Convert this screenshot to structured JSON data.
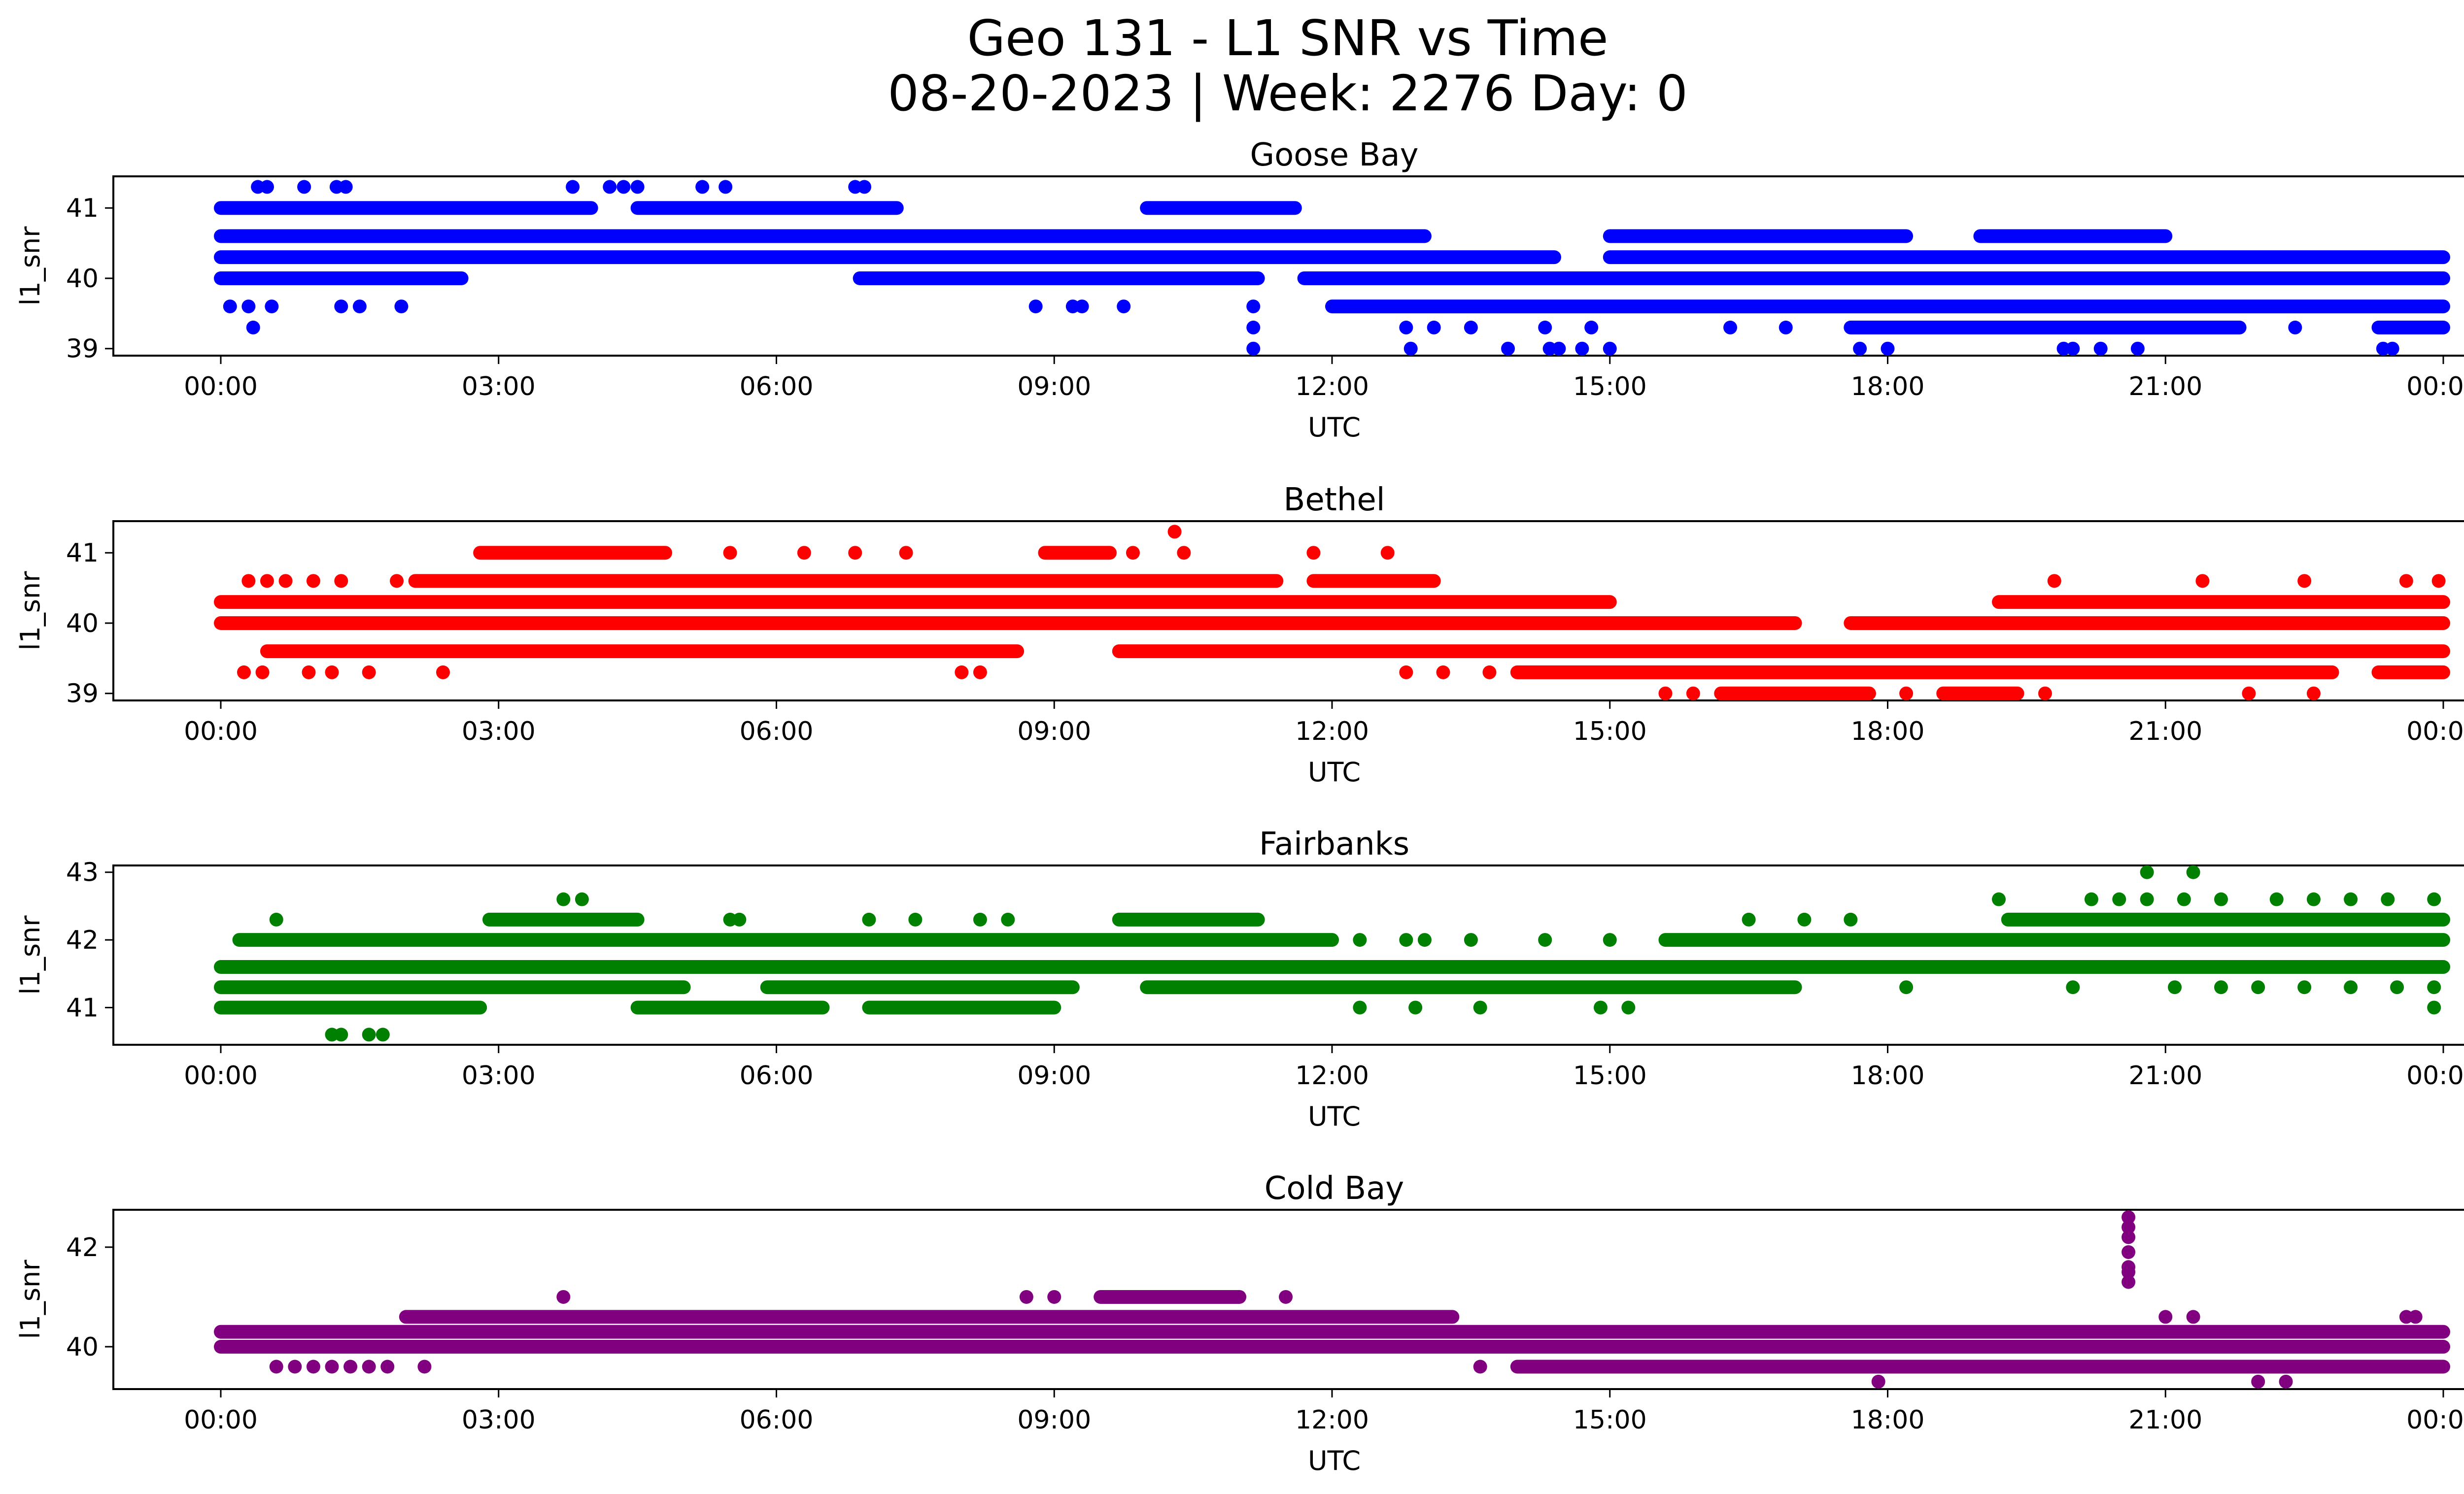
{
  "header": {
    "title_line1": "Geo 131 - L1 SNR vs Time",
    "title_line2": "08-20-2023 | Week: 2276 Day: 0"
  },
  "chart_data": [
    {
      "type": "scatter",
      "title": "Goose Bay",
      "xlabel": "UTC",
      "ylabel": "l1_snr",
      "x_unit": "hours (UTC)",
      "xlim": [
        0,
        24
      ],
      "ylim": [
        38.9,
        41.45
      ],
      "yticks": [
        39,
        40,
        41
      ],
      "xtick_labels": [
        "00:00",
        "03:00",
        "06:00",
        "09:00",
        "12:00",
        "15:00",
        "18:00",
        "21:00",
        "00:00"
      ],
      "color": "#0000ff",
      "series": [
        {
          "y": 41.0,
          "segments": [
            [
              0.0,
              4.0
            ],
            [
              4.5,
              7.3
            ],
            [
              10.0,
              11.6
            ]
          ]
        },
        {
          "y": 40.6,
          "segments": [
            [
              0.0,
              13.0
            ],
            [
              15.0,
              18.2
            ],
            [
              19.0,
              21.0
            ]
          ]
        },
        {
          "y": 40.3,
          "segments": [
            [
              0.0,
              14.4
            ],
            [
              15.0,
              24.0
            ]
          ]
        },
        {
          "y": 40.0,
          "segments": [
            [
              0.0,
              2.6
            ],
            [
              6.9,
              11.2
            ],
            [
              11.7,
              24.0
            ]
          ]
        },
        {
          "y": 39.6,
          "segments": [
            [
              12.0,
              24.0
            ]
          ]
        },
        {
          "y": 39.3,
          "segments": [
            [
              17.6,
              21.8
            ],
            [
              23.3,
              24.0
            ]
          ]
        }
      ],
      "points": [
        {
          "x": 0.4,
          "y": 41.3
        },
        {
          "x": 0.5,
          "y": 41.3
        },
        {
          "x": 0.9,
          "y": 41.3
        },
        {
          "x": 1.25,
          "y": 41.3
        },
        {
          "x": 1.35,
          "y": 41.3
        },
        {
          "x": 3.8,
          "y": 41.3
        },
        {
          "x": 4.2,
          "y": 41.3
        },
        {
          "x": 4.35,
          "y": 41.3
        },
        {
          "x": 4.5,
          "y": 41.3
        },
        {
          "x": 5.2,
          "y": 41.3
        },
        {
          "x": 5.45,
          "y": 41.3
        },
        {
          "x": 6.85,
          "y": 41.3
        },
        {
          "x": 6.95,
          "y": 41.3
        },
        {
          "x": 0.1,
          "y": 39.6
        },
        {
          "x": 0.3,
          "y": 39.6
        },
        {
          "x": 0.55,
          "y": 39.6
        },
        {
          "x": 1.3,
          "y": 39.6
        },
        {
          "x": 1.5,
          "y": 39.6
        },
        {
          "x": 1.95,
          "y": 39.6
        },
        {
          "x": 8.8,
          "y": 39.6
        },
        {
          "x": 9.2,
          "y": 39.6
        },
        {
          "x": 9.3,
          "y": 39.6
        },
        {
          "x": 9.75,
          "y": 39.6
        },
        {
          "x": 11.15,
          "y": 39.6
        },
        {
          "x": 0.35,
          "y": 39.3
        },
        {
          "x": 11.15,
          "y": 39.3
        },
        {
          "x": 12.8,
          "y": 39.3
        },
        {
          "x": 13.1,
          "y": 39.3
        },
        {
          "x": 13.5,
          "y": 39.3
        },
        {
          "x": 14.3,
          "y": 39.3
        },
        {
          "x": 14.8,
          "y": 39.3
        },
        {
          "x": 16.3,
          "y": 39.3
        },
        {
          "x": 16.9,
          "y": 39.3
        },
        {
          "x": 22.4,
          "y": 39.3
        },
        {
          "x": 11.15,
          "y": 39.0
        },
        {
          "x": 12.85,
          "y": 39.0
        },
        {
          "x": 13.9,
          "y": 39.0
        },
        {
          "x": 14.35,
          "y": 39.0
        },
        {
          "x": 14.45,
          "y": 39.0
        },
        {
          "x": 14.7,
          "y": 39.0
        },
        {
          "x": 15.0,
          "y": 39.0
        },
        {
          "x": 17.7,
          "y": 39.0
        },
        {
          "x": 18.0,
          "y": 39.0
        },
        {
          "x": 19.9,
          "y": 39.0
        },
        {
          "x": 20.0,
          "y": 39.0
        },
        {
          "x": 20.3,
          "y": 39.0
        },
        {
          "x": 20.7,
          "y": 39.0
        },
        {
          "x": 23.35,
          "y": 39.0
        },
        {
          "x": 23.45,
          "y": 39.0
        }
      ]
    },
    {
      "type": "scatter",
      "title": "Bethel",
      "xlabel": "UTC",
      "ylabel": "l1_snr",
      "x_unit": "hours (UTC)",
      "xlim": [
        0,
        24
      ],
      "ylim": [
        38.9,
        41.45
      ],
      "yticks": [
        39,
        40,
        41
      ],
      "xtick_labels": [
        "00:00",
        "03:00",
        "06:00",
        "09:00",
        "12:00",
        "15:00",
        "18:00",
        "21:00",
        "00:00"
      ],
      "color": "#ff0000",
      "series": [
        {
          "y": 41.0,
          "segments": [
            [
              2.8,
              4.8
            ],
            [
              8.9,
              9.6
            ]
          ]
        },
        {
          "y": 40.6,
          "segments": [
            [
              2.1,
              11.4
            ],
            [
              11.8,
              13.1
            ]
          ]
        },
        {
          "y": 40.3,
          "segments": [
            [
              0.0,
              15.0
            ],
            [
              19.2,
              24.0
            ]
          ]
        },
        {
          "y": 40.0,
          "segments": [
            [
              0.0,
              17.0
            ],
            [
              17.6,
              24.0
            ]
          ]
        },
        {
          "y": 39.6,
          "segments": [
            [
              0.5,
              8.6
            ],
            [
              9.7,
              24.0
            ]
          ]
        },
        {
          "y": 39.3,
          "segments": [
            [
              14.0,
              22.8
            ],
            [
              23.3,
              24.0
            ]
          ]
        },
        {
          "y": 39.0,
          "segments": [
            [
              16.2,
              17.8
            ],
            [
              18.6,
              19.4
            ]
          ]
        }
      ],
      "points": [
        {
          "x": 10.3,
          "y": 41.3
        },
        {
          "x": 5.5,
          "y": 41.0
        },
        {
          "x": 6.3,
          "y": 41.0
        },
        {
          "x": 6.85,
          "y": 41.0
        },
        {
          "x": 7.4,
          "y": 41.0
        },
        {
          "x": 9.85,
          "y": 41.0
        },
        {
          "x": 10.4,
          "y": 41.0
        },
        {
          "x": 11.8,
          "y": 41.0
        },
        {
          "x": 12.6,
          "y": 41.0
        },
        {
          "x": 0.3,
          "y": 40.6
        },
        {
          "x": 0.5,
          "y": 40.6
        },
        {
          "x": 0.7,
          "y": 40.6
        },
        {
          "x": 1.0,
          "y": 40.6
        },
        {
          "x": 1.3,
          "y": 40.6
        },
        {
          "x": 1.9,
          "y": 40.6
        },
        {
          "x": 19.8,
          "y": 40.6
        },
        {
          "x": 21.4,
          "y": 40.6
        },
        {
          "x": 22.5,
          "y": 40.6
        },
        {
          "x": 23.6,
          "y": 40.6
        },
        {
          "x": 23.95,
          "y": 40.6
        },
        {
          "x": 0.25,
          "y": 39.3
        },
        {
          "x": 0.45,
          "y": 39.3
        },
        {
          "x": 0.95,
          "y": 39.3
        },
        {
          "x": 1.2,
          "y": 39.3
        },
        {
          "x": 1.6,
          "y": 39.3
        },
        {
          "x": 2.4,
          "y": 39.3
        },
        {
          "x": 8.0,
          "y": 39.3
        },
        {
          "x": 8.2,
          "y": 39.3
        },
        {
          "x": 12.8,
          "y": 39.3
        },
        {
          "x": 13.2,
          "y": 39.3
        },
        {
          "x": 13.7,
          "y": 39.3
        },
        {
          "x": 15.6,
          "y": 39.0
        },
        {
          "x": 15.9,
          "y": 39.0
        },
        {
          "x": 18.2,
          "y": 39.0
        },
        {
          "x": 19.7,
          "y": 39.0
        },
        {
          "x": 21.9,
          "y": 39.0
        },
        {
          "x": 22.6,
          "y": 39.0
        }
      ]
    },
    {
      "type": "scatter",
      "title": "Fairbanks",
      "xlabel": "UTC",
      "ylabel": "l1_snr",
      "x_unit": "hours (UTC)",
      "xlim": [
        0,
        24
      ],
      "ylim": [
        40.45,
        43.1
      ],
      "yticks": [
        41,
        42,
        43
      ],
      "xtick_labels": [
        "00:00",
        "03:00",
        "06:00",
        "09:00",
        "12:00",
        "15:00",
        "18:00",
        "21:00",
        "00:00"
      ],
      "color": "#008000",
      "series": [
        {
          "y": 42.3,
          "segments": [
            [
              2.9,
              4.5
            ],
            [
              9.7,
              11.2
            ],
            [
              19.3,
              24.0
            ]
          ]
        },
        {
          "y": 42.0,
          "segments": [
            [
              0.2,
              12.0
            ],
            [
              15.6,
              24.0
            ]
          ]
        },
        {
          "y": 41.6,
          "segments": [
            [
              0.0,
              24.0
            ]
          ]
        },
        {
          "y": 41.3,
          "segments": [
            [
              0.0,
              5.0
            ],
            [
              5.9,
              9.2
            ],
            [
              10.0,
              17.0
            ]
          ]
        },
        {
          "y": 41.0,
          "segments": [
            [
              0.0,
              2.8
            ],
            [
              4.5,
              6.5
            ],
            [
              7.0,
              9.0
            ]
          ]
        }
      ],
      "points": [
        {
          "x": 0.6,
          "y": 42.3
        },
        {
          "x": 5.5,
          "y": 42.3
        },
        {
          "x": 5.6,
          "y": 42.3
        },
        {
          "x": 7.0,
          "y": 42.3
        },
        {
          "x": 7.5,
          "y": 42.3
        },
        {
          "x": 8.2,
          "y": 42.3
        },
        {
          "x": 8.5,
          "y": 42.3
        },
        {
          "x": 16.5,
          "y": 42.3
        },
        {
          "x": 17.1,
          "y": 42.3
        },
        {
          "x": 17.6,
          "y": 42.3
        },
        {
          "x": 3.7,
          "y": 42.6
        },
        {
          "x": 3.9,
          "y": 42.6
        },
        {
          "x": 19.2,
          "y": 42.6
        },
        {
          "x": 20.2,
          "y": 42.6
        },
        {
          "x": 20.5,
          "y": 42.6
        },
        {
          "x": 20.8,
          "y": 42.6
        },
        {
          "x": 21.2,
          "y": 42.6
        },
        {
          "x": 21.6,
          "y": 42.6
        },
        {
          "x": 22.2,
          "y": 42.6
        },
        {
          "x": 22.6,
          "y": 42.6
        },
        {
          "x": 23.0,
          "y": 42.6
        },
        {
          "x": 23.4,
          "y": 42.6
        },
        {
          "x": 23.9,
          "y": 42.6
        },
        {
          "x": 20.8,
          "y": 43.0
        },
        {
          "x": 21.3,
          "y": 43.0
        },
        {
          "x": 12.3,
          "y": 42.0
        },
        {
          "x": 12.8,
          "y": 42.0
        },
        {
          "x": 13.0,
          "y": 42.0
        },
        {
          "x": 13.5,
          "y": 42.0
        },
        {
          "x": 14.3,
          "y": 42.0
        },
        {
          "x": 15.0,
          "y": 42.0
        },
        {
          "x": 18.2,
          "y": 41.3
        },
        {
          "x": 20.0,
          "y": 41.3
        },
        {
          "x": 21.1,
          "y": 41.3
        },
        {
          "x": 21.6,
          "y": 41.3
        },
        {
          "x": 22.0,
          "y": 41.3
        },
        {
          "x": 22.5,
          "y": 41.3
        },
        {
          "x": 23.0,
          "y": 41.3
        },
        {
          "x": 23.5,
          "y": 41.3
        },
        {
          "x": 23.9,
          "y": 41.3
        },
        {
          "x": 12.3,
          "y": 41.0
        },
        {
          "x": 12.9,
          "y": 41.0
        },
        {
          "x": 13.6,
          "y": 41.0
        },
        {
          "x": 14.9,
          "y": 41.0
        },
        {
          "x": 15.2,
          "y": 41.0
        },
        {
          "x": 23.9,
          "y": 41.0
        },
        {
          "x": 1.2,
          "y": 40.6
        },
        {
          "x": 1.3,
          "y": 40.6
        },
        {
          "x": 1.6,
          "y": 40.6
        },
        {
          "x": 1.75,
          "y": 40.6
        }
      ]
    },
    {
      "type": "scatter",
      "title": "Cold Bay",
      "xlabel": "UTC",
      "ylabel": "l1_snr",
      "x_unit": "hours (UTC)",
      "xlim": [
        0,
        24
      ],
      "ylim": [
        39.15,
        42.75
      ],
      "yticks": [
        40,
        42
      ],
      "xtick_labels": [
        "00:00",
        "03:00",
        "06:00",
        "09:00",
        "12:00",
        "15:00",
        "18:00",
        "21:00",
        "00:00"
      ],
      "color": "#800080",
      "series": [
        {
          "y": 41.0,
          "segments": [
            [
              9.5,
              11.0
            ]
          ]
        },
        {
          "y": 40.6,
          "segments": [
            [
              2.0,
              13.3
            ]
          ]
        },
        {
          "y": 40.3,
          "segments": [
            [
              0.0,
              24.0
            ]
          ]
        },
        {
          "y": 40.0,
          "segments": [
            [
              0.0,
              24.0
            ]
          ]
        },
        {
          "y": 39.6,
          "segments": [
            [
              14.0,
              24.0
            ]
          ]
        }
      ],
      "points": [
        {
          "x": 3.7,
          "y": 41.0
        },
        {
          "x": 8.7,
          "y": 41.0
        },
        {
          "x": 9.0,
          "y": 41.0
        },
        {
          "x": 11.5,
          "y": 41.0
        },
        {
          "x": 0.6,
          "y": 39.6
        },
        {
          "x": 0.8,
          "y": 39.6
        },
        {
          "x": 1.0,
          "y": 39.6
        },
        {
          "x": 1.2,
          "y": 39.6
        },
        {
          "x": 1.4,
          "y": 39.6
        },
        {
          "x": 1.6,
          "y": 39.6
        },
        {
          "x": 1.8,
          "y": 39.6
        },
        {
          "x": 2.2,
          "y": 39.6
        },
        {
          "x": 13.6,
          "y": 39.6
        },
        {
          "x": 20.6,
          "y": 42.6
        },
        {
          "x": 20.6,
          "y": 42.4
        },
        {
          "x": 20.6,
          "y": 42.2
        },
        {
          "x": 20.6,
          "y": 41.9
        },
        {
          "x": 20.6,
          "y": 41.6
        },
        {
          "x": 20.6,
          "y": 41.5
        },
        {
          "x": 20.6,
          "y": 41.3
        },
        {
          "x": 21.0,
          "y": 40.6
        },
        {
          "x": 21.3,
          "y": 40.6
        },
        {
          "x": 23.6,
          "y": 40.6
        },
        {
          "x": 23.7,
          "y": 40.6
        },
        {
          "x": 17.9,
          "y": 39.3
        },
        {
          "x": 22.0,
          "y": 39.3
        },
        {
          "x": 22.3,
          "y": 39.3
        }
      ]
    }
  ]
}
